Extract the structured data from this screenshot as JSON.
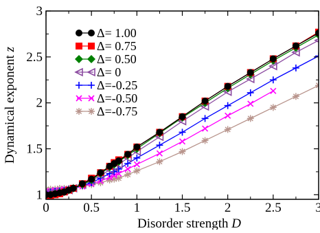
{
  "chart_data": {
    "type": "line",
    "title": "",
    "xlabel": "Disorder strength D",
    "xlabel_parts": [
      "Disorder strength ",
      "D"
    ],
    "ylabel": "Dynamical exponent z",
    "ylabel_parts": [
      "Dynamical exponent ",
      "z"
    ],
    "xlim": [
      0,
      3
    ],
    "ylim": [
      0.95,
      3
    ],
    "xticks": [
      0,
      0.5,
      1,
      1.5,
      2,
      2.5,
      3
    ],
    "xtick_labels": [
      "0",
      "0.5",
      "1",
      "1.5",
      "2",
      "2.5",
      "3"
    ],
    "yticks": [
      1,
      1.5,
      2,
      2.5,
      3
    ],
    "ytick_labels": [
      "1",
      "1.5",
      "2",
      "2.5",
      "3"
    ],
    "grid": false,
    "legend_position": "top-left",
    "series": [
      {
        "name": "Δ= 1.00",
        "color": "#000000",
        "marker": "circle",
        "x": [
          0,
          0.05,
          0.1,
          0.15,
          0.2,
          0.25,
          0.3,
          0.4,
          0.5,
          0.6,
          0.7,
          0.75,
          0.8,
          0.9,
          1.0,
          1.25,
          1.5,
          1.75,
          2.0,
          2.25,
          2.5,
          2.75,
          3.0
        ],
        "y": [
          1.0,
          1.0,
          1.01,
          1.02,
          1.03,
          1.05,
          1.07,
          1.12,
          1.17,
          1.24,
          1.31,
          1.34,
          1.37,
          1.44,
          1.52,
          1.68,
          1.85,
          2.02,
          2.18,
          2.33,
          2.48,
          2.62,
          2.76
        ]
      },
      {
        "name": "Δ= 0.75",
        "color": "#ff0000",
        "marker": "square",
        "x": [
          0,
          0.05,
          0.1,
          0.15,
          0.2,
          0.25,
          0.3,
          0.4,
          0.5,
          0.6,
          0.7,
          0.75,
          0.8,
          0.9,
          1.0,
          1.25,
          1.5,
          1.75,
          2.0,
          2.25,
          2.5,
          2.75,
          3.0
        ],
        "y": [
          0.98,
          0.99,
          1.0,
          1.01,
          1.03,
          1.05,
          1.07,
          1.12,
          1.18,
          1.24,
          1.31,
          1.35,
          1.38,
          1.44,
          1.52,
          1.68,
          1.85,
          2.02,
          2.18,
          2.33,
          2.48,
          2.62,
          2.77
        ]
      },
      {
        "name": "Δ= 0.50",
        "color": "#008000",
        "marker": "diamond",
        "x": [
          0,
          0.05,
          0.1,
          0.15,
          0.2,
          0.25,
          0.3,
          0.4,
          0.5,
          0.6,
          0.7,
          0.75,
          0.8,
          0.9,
          1.0,
          1.25,
          1.5,
          1.75,
          2.0,
          2.25,
          2.5,
          2.75,
          3.0
        ],
        "y": [
          1.0,
          1.0,
          1.01,
          1.02,
          1.03,
          1.05,
          1.07,
          1.11,
          1.16,
          1.23,
          1.3,
          1.33,
          1.36,
          1.43,
          1.5,
          1.67,
          1.84,
          2.0,
          2.16,
          2.31,
          2.46,
          2.6,
          2.74
        ]
      },
      {
        "name": "Δ= 0",
        "color": "#8b4aa0",
        "marker": "triangle-left",
        "x": [
          0,
          0.05,
          0.1,
          0.15,
          0.2,
          0.25,
          0.3,
          0.4,
          0.5,
          0.6,
          0.7,
          0.75,
          0.8,
          0.9,
          1.0,
          1.25,
          1.5,
          1.75,
          2.0,
          2.25,
          2.5,
          2.75,
          3.0
        ],
        "y": [
          1.02,
          1.02,
          1.03,
          1.03,
          1.04,
          1.05,
          1.07,
          1.11,
          1.15,
          1.21,
          1.27,
          1.3,
          1.33,
          1.4,
          1.47,
          1.63,
          1.8,
          1.96,
          2.12,
          2.26,
          2.4,
          2.55,
          2.68
        ]
      },
      {
        "name": "Δ=-0.25",
        "color": "#0000ff",
        "marker": "plus",
        "x": [
          0,
          0.05,
          0.1,
          0.15,
          0.2,
          0.25,
          0.3,
          0.4,
          0.5,
          0.6,
          0.7,
          0.75,
          0.8,
          0.9,
          1.0,
          1.25,
          1.5,
          1.75,
          2.0,
          2.25,
          2.5,
          2.75,
          3.0
        ],
        "y": [
          1.03,
          1.03,
          1.04,
          1.04,
          1.05,
          1.06,
          1.07,
          1.1,
          1.13,
          1.18,
          1.23,
          1.25,
          1.28,
          1.34,
          1.4,
          1.54,
          1.68,
          1.83,
          1.97,
          2.11,
          2.25,
          2.38,
          2.51
        ]
      },
      {
        "name": "Δ=-0.50",
        "color": "#ff00ff",
        "marker": "cross",
        "x": [
          0,
          0.05,
          0.1,
          0.15,
          0.2,
          0.25,
          0.3,
          0.4,
          0.5,
          0.6,
          0.7,
          0.75,
          0.8,
          0.9,
          1.0,
          1.25,
          1.5,
          1.75,
          2.0,
          2.25,
          2.5
        ],
        "y": [
          1.04,
          1.04,
          1.05,
          1.05,
          1.06,
          1.06,
          1.07,
          1.09,
          1.12,
          1.15,
          1.19,
          1.21,
          1.23,
          1.28,
          1.33,
          1.45,
          1.58,
          1.72,
          1.86,
          1.99,
          2.13
        ]
      },
      {
        "name": "Δ=-0.75",
        "color": "#b8948c",
        "marker": "asterisk",
        "x": [
          0,
          0.05,
          0.1,
          0.15,
          0.2,
          0.25,
          0.3,
          0.4,
          0.5,
          0.6,
          0.7,
          0.75,
          0.8,
          0.9,
          1.0,
          1.25,
          1.5,
          1.75,
          2.0,
          2.25,
          2.5,
          2.75,
          3.0
        ],
        "y": [
          1.06,
          1.06,
          1.06,
          1.07,
          1.07,
          1.07,
          1.08,
          1.09,
          1.11,
          1.13,
          1.16,
          1.17,
          1.18,
          1.22,
          1.26,
          1.36,
          1.47,
          1.59,
          1.71,
          1.83,
          1.95,
          2.07,
          2.19
        ]
      }
    ]
  }
}
